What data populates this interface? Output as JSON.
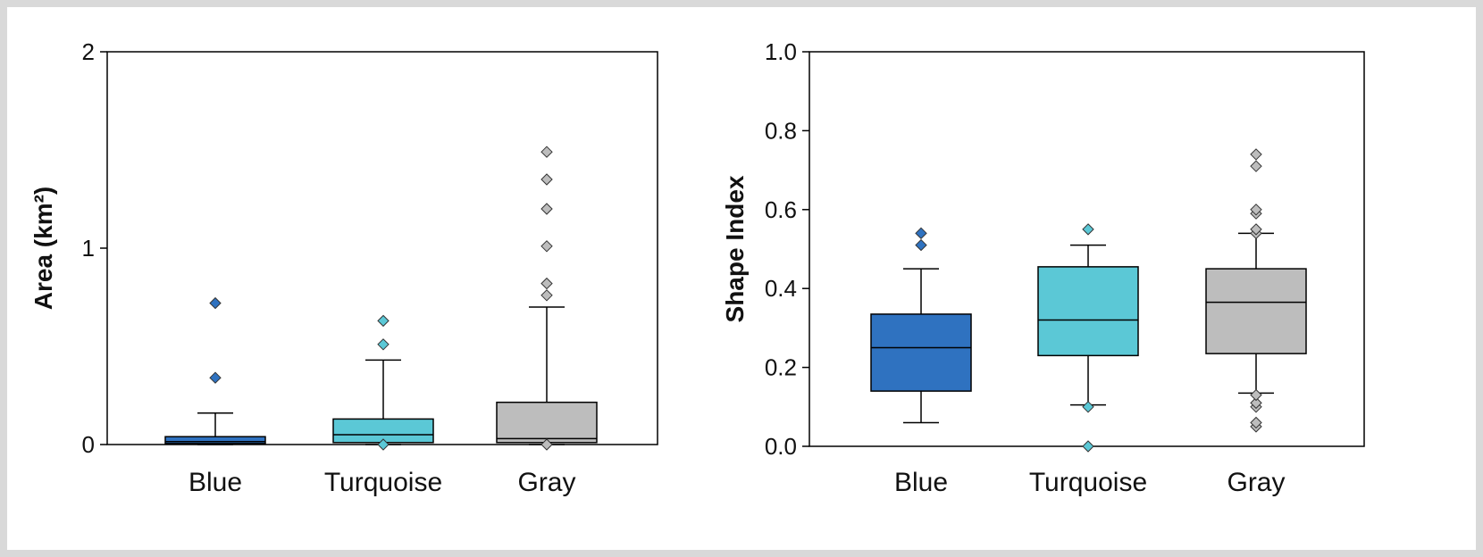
{
  "colors": {
    "blue": "#2f72c0",
    "turquoise": "#5bc8d6",
    "gray": "#bdbdbd",
    "frame": "#d9d9d9"
  },
  "chart_data": [
    {
      "type": "box",
      "title": "",
      "xlabel": "",
      "ylabel": "Area (km²)",
      "ylim": [
        0,
        2
      ],
      "yticks": [
        0,
        1,
        2
      ],
      "ytick_labels": [
        "0",
        "1",
        "2"
      ],
      "grid": false,
      "categories": [
        "Blue",
        "Turquoise",
        "Gray"
      ],
      "boxes": [
        {
          "category": "Blue",
          "color": "#2f72c0",
          "whisker_low": 0.0,
          "q1": 0.005,
          "median": 0.015,
          "q3": 0.04,
          "whisker_high": 0.16,
          "outliers": [
            0.34,
            0.72
          ]
        },
        {
          "category": "Turquoise",
          "color": "#5bc8d6",
          "whisker_low": 0.0,
          "q1": 0.01,
          "median": 0.05,
          "q3": 0.13,
          "whisker_high": 0.43,
          "outliers": [
            0.0,
            0.51,
            0.63
          ]
        },
        {
          "category": "Gray",
          "color": "#bdbdbd",
          "whisker_low": 0.0,
          "q1": 0.01,
          "median": 0.03,
          "q3": 0.215,
          "whisker_high": 0.7,
          "outliers": [
            0.0,
            0.76,
            0.82,
            1.01,
            1.2,
            1.35,
            1.49
          ]
        }
      ]
    },
    {
      "type": "box",
      "title": "",
      "xlabel": "",
      "ylabel": "Shape Index",
      "ylim": [
        0,
        1
      ],
      "yticks": [
        0,
        0.2,
        0.4,
        0.6,
        0.8,
        1.0
      ],
      "ytick_labels": [
        "0.0",
        "0.2",
        "0.4",
        "0.6",
        "0.8",
        "1.0"
      ],
      "grid": false,
      "categories": [
        "Blue",
        "Turquoise",
        "Gray"
      ],
      "boxes": [
        {
          "category": "Blue",
          "color": "#2f72c0",
          "whisker_low": 0.06,
          "q1": 0.14,
          "median": 0.25,
          "q3": 0.335,
          "whisker_high": 0.45,
          "outliers": [
            0.51,
            0.54
          ]
        },
        {
          "category": "Turquoise",
          "color": "#5bc8d6",
          "whisker_low": 0.105,
          "q1": 0.23,
          "median": 0.32,
          "q3": 0.455,
          "whisker_high": 0.51,
          "outliers": [
            0.0,
            0.1,
            0.55
          ]
        },
        {
          "category": "Gray",
          "color": "#bdbdbd",
          "whisker_low": 0.135,
          "q1": 0.235,
          "median": 0.365,
          "q3": 0.45,
          "whisker_high": 0.54,
          "outliers": [
            0.05,
            0.06,
            0.1,
            0.11,
            0.13,
            0.54,
            0.55,
            0.59,
            0.6,
            0.71,
            0.74
          ]
        }
      ]
    }
  ]
}
